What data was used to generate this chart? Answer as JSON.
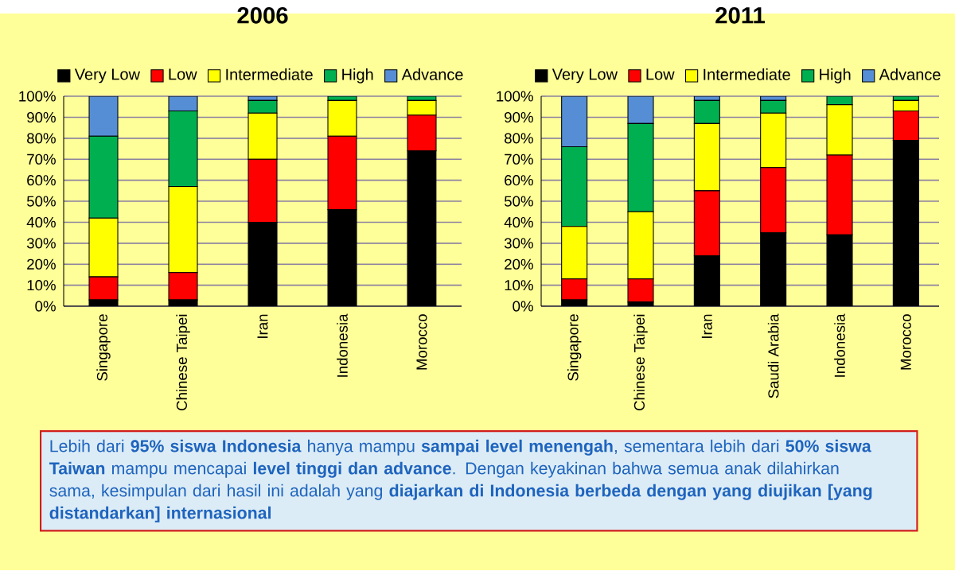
{
  "chart_data": [
    {
      "type": "bar",
      "stacked": true,
      "title": "2006",
      "categories": [
        "Singapore",
        "Chinese Taipei",
        "Iran",
        "Indonesia",
        "Morocco"
      ],
      "series": [
        {
          "name": "Very Low",
          "color": "#000000",
          "values": [
            3,
            3,
            40,
            46,
            74
          ]
        },
        {
          "name": "Low",
          "color": "#ff0000",
          "values": [
            11,
            13,
            30,
            35,
            17
          ]
        },
        {
          "name": "Intermediate",
          "color": "#ffff00",
          "values": [
            28,
            41,
            22,
            17,
            7
          ]
        },
        {
          "name": "High",
          "color": "#00b050",
          "values": [
            39,
            36,
            6,
            2,
            2
          ]
        },
        {
          "name": "Advance",
          "color": "#558ed5",
          "values": [
            19,
            7,
            2,
            null,
            null
          ]
        }
      ],
      "ylim": [
        0,
        100
      ],
      "yticks": [
        {
          "value": 0,
          "label": "0%"
        },
        {
          "value": 10,
          "label": "10%"
        },
        {
          "value": 20,
          "label": "20%"
        },
        {
          "value": 30,
          "label": "30%"
        },
        {
          "value": 40,
          "label": "40%"
        },
        {
          "value": 50,
          "label": "50%"
        },
        {
          "value": 60,
          "label": "60%"
        },
        {
          "value": 70,
          "label": "70%"
        },
        {
          "value": 80,
          "label": "80%"
        },
        {
          "value": 90,
          "label": "90%"
        },
        {
          "value": 100,
          "label": "100%"
        }
      ],
      "grid": "y",
      "legend": "top",
      "annotations": [
        "Lebih dari **95% siswa Indonesia** hanya mampu **sampai level menengah**, sementara lebih dari **50% siswa Taiwan** mampu mencapai **level tinggi dan advance**. Dengan keyakinan bahwa semua anak dilahirkan sama, kesimpulan dari hasil ini adalah yang **diajarkan di Indonesia berbeda dengan yang diujikan [yang distandarkan] internasional**"
      ]
    },
    {
      "type": "bar",
      "stacked": true,
      "title": "2011",
      "categories": [
        "Singapore",
        "Chinese Taipei",
        "Iran",
        "Saudi Arabia",
        "Indonesia",
        "Morocco"
      ],
      "series": [
        {
          "name": "Very Low",
          "color": "#000000",
          "values": [
            3,
            2,
            24,
            35,
            34,
            79
          ]
        },
        {
          "name": "Low",
          "color": "#ff0000",
          "values": [
            10,
            11,
            31,
            31,
            38,
            14
          ]
        },
        {
          "name": "Intermediate",
          "color": "#ffff00",
          "values": [
            25,
            32,
            32,
            26,
            24,
            5
          ]
        },
        {
          "name": "High",
          "color": "#00b050",
          "values": [
            38,
            42,
            11,
            6,
            4,
            2
          ]
        },
        {
          "name": "Advance",
          "color": "#558ed5",
          "values": [
            24,
            13,
            2,
            2,
            0,
            null
          ]
        }
      ],
      "ylim": [
        0,
        100
      ],
      "yticks": [
        {
          "value": 0,
          "label": "0%"
        },
        {
          "value": 10,
          "label": "10%"
        },
        {
          "value": 20,
          "label": "20%"
        },
        {
          "value": 30,
          "label": "30%"
        },
        {
          "value": 40,
          "label": "40%"
        },
        {
          "value": 50,
          "label": "50%"
        },
        {
          "value": 60,
          "label": "60%"
        },
        {
          "value": 70,
          "label": "70%"
        },
        {
          "value": 80,
          "label": "80%"
        },
        {
          "value": 90,
          "label": "90%"
        },
        {
          "value": 100,
          "label": "100%"
        }
      ],
      "grid": "y",
      "legend": "top"
    }
  ]
}
